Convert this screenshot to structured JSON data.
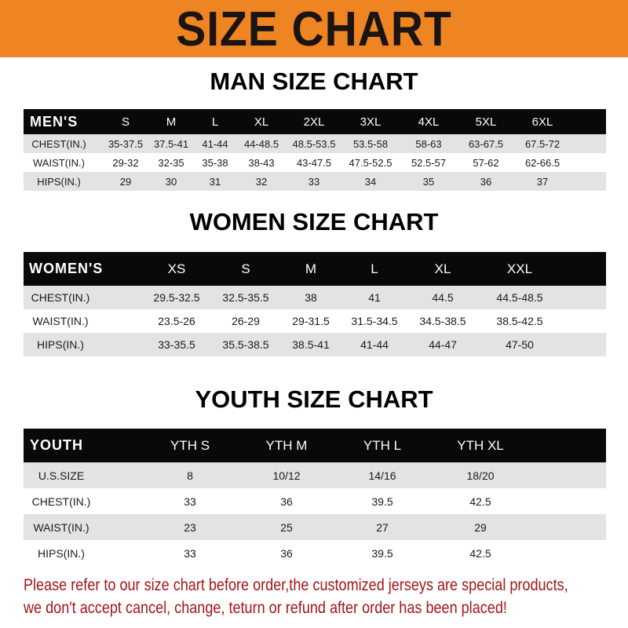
{
  "banner": {
    "title": "SIZE CHART",
    "color": "#ee8422"
  },
  "men": {
    "title": "MAN SIZE CHART",
    "header": [
      "MEN'S",
      "S",
      "M",
      "L",
      "XL",
      "2XL",
      "3XL",
      "4XL",
      "5XL",
      "6XL"
    ],
    "rows": [
      [
        "CHEST(IN.)",
        "35-37.5",
        "37.5-41",
        "41-44",
        "44-48.5",
        "48.5-53.5",
        "53.5-58",
        "58-63",
        "63-67.5",
        "67.5-72"
      ],
      [
        "WAIST(IN.)",
        "29-32",
        "32-35",
        "35-38",
        "38-43",
        "43-47.5",
        "47.5-52.5",
        "52.5-57",
        "57-62",
        "62-66.5"
      ],
      [
        "HIPS(IN.)",
        "29",
        "30",
        "31",
        "32",
        "33",
        "34",
        "35",
        "36",
        "37"
      ]
    ]
  },
  "women": {
    "title": "WOMEN SIZE CHART",
    "header": [
      "WOMEN'S",
      "XS",
      "S",
      "M",
      "L",
      "XL",
      "XXL"
    ],
    "rows": [
      [
        "CHEST(IN.)",
        "29.5-32.5",
        "32.5-35.5",
        "38",
        "41",
        "44.5",
        "44.5-48.5"
      ],
      [
        "WAIST(IN.)",
        "23.5-26",
        "26-29",
        "29-31.5",
        "31.5-34.5",
        "34.5-38.5",
        "38.5-42.5"
      ],
      [
        "HIPS(IN.)",
        "33-35.5",
        "35.5-38.5",
        "38.5-41",
        "41-44",
        "44-47",
        "47-50"
      ]
    ]
  },
  "youth": {
    "title": "YOUTH SIZE CHART",
    "header": [
      "YOUTH",
      "YTH S",
      "YTH M",
      "YTH L",
      "YTH XL"
    ],
    "rows": [
      [
        "U.S.SIZE",
        "8",
        "10/12",
        "14/16",
        "18/20"
      ],
      [
        "CHEST(IN.)",
        "33",
        "36",
        "39.5",
        "42.5"
      ],
      [
        "WAIST(IN.)",
        "23",
        "25",
        "27",
        "29"
      ],
      [
        "HIPS(IN.)",
        "33",
        "36",
        "39.5",
        "42.5"
      ]
    ]
  },
  "note": {
    "line1": "Please refer to our size chart before order,the customized jerseys are special products,",
    "line2": "we don't accept cancel, change, teturn or refund after order has been placed!",
    "color": "#a3151a"
  }
}
